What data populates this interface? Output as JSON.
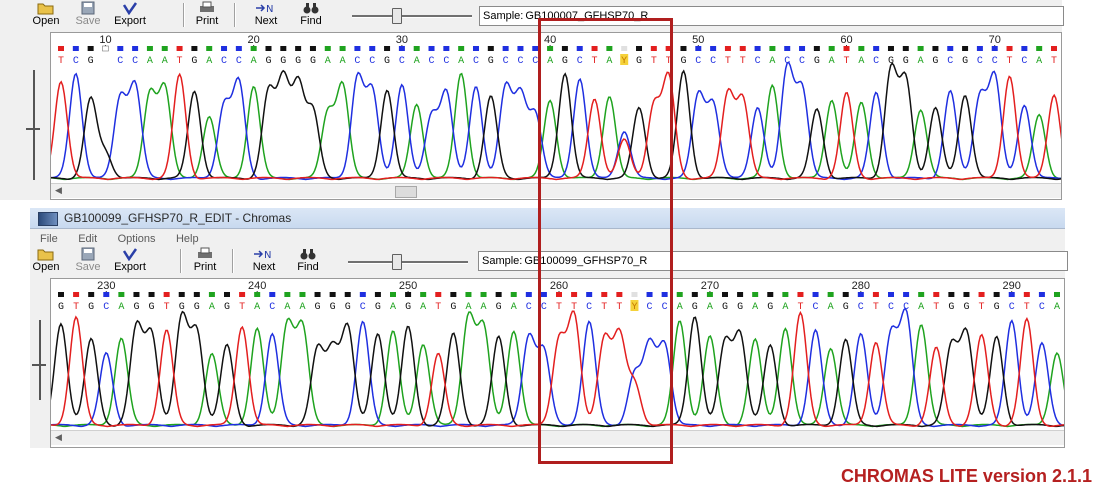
{
  "colors": {
    "A": "#1fa31f",
    "C": "#1f2fe0",
    "G": "#111111",
    "T": "#e31f1f",
    "N": "#e8a000",
    "highlight_box": "#b01e1e",
    "version_text": "#b52020"
  },
  "toolbar": {
    "open_label": "Open",
    "save_label": "Save",
    "export_label": "Export",
    "print_label": "Print",
    "next_label": "Next",
    "find_label": "Find",
    "sample_label": "Sample:"
  },
  "top_window": {
    "sample_name": "GB100007_GFHSP70_R",
    "ruler": {
      "first_pos": 7,
      "ticks": [
        10,
        20,
        30,
        40,
        50,
        60,
        70
      ]
    },
    "sequence": "TCGNCCAATGACCAGGGGAACCGCACCACGCCCAGCTAYGTTGCCTTCACCGATACGGAGCGCCTCAT"
  },
  "bottom_window": {
    "title": "GB100099_GFHSP70_R_EDIT - Chromas",
    "menu": [
      "File",
      "Edit",
      "Options",
      "Help"
    ],
    "sample_name": "GB100099_GFHSP70_R",
    "ruler": {
      "first_pos": 227,
      "ticks": [
        230,
        240,
        250,
        260,
        270,
        280,
        290
      ]
    },
    "sequence": "GTGCAGGTGGAGTACAAGGGCGAGATGAAGACCTTCTTYCCAGAGGAGATCAGCTCCATGGTGCTCA"
  },
  "version_label": "CHROMAS LITE version 2.1.1"
}
